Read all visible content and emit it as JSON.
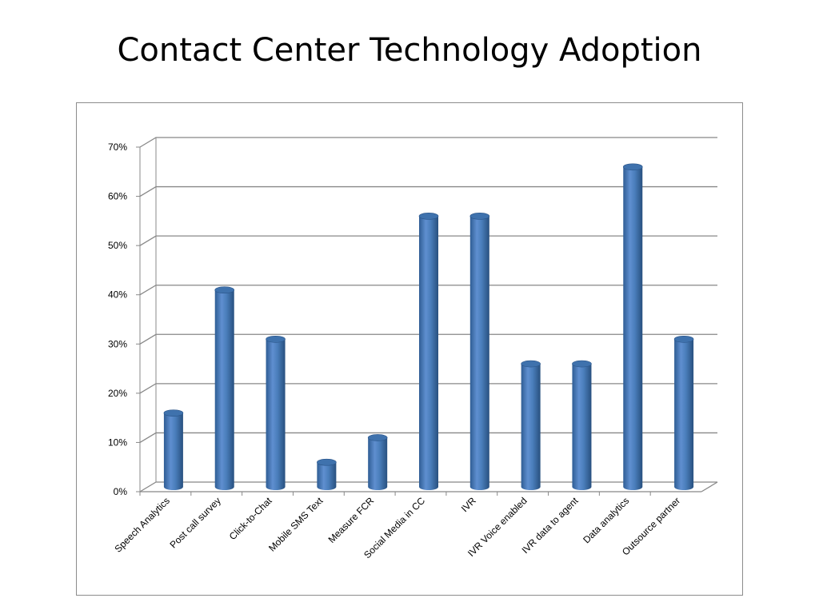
{
  "slide": {
    "title": "Contact Center Technology Adoption"
  },
  "chart_data": {
    "type": "bar",
    "style": "3d-cylinder",
    "bar_color": "#4a7ebb",
    "grid": true,
    "legend": "none",
    "ylim": [
      0,
      0.7
    ],
    "yticks": [
      {
        "value": 0.0,
        "label": "0%"
      },
      {
        "value": 0.1,
        "label": "10%"
      },
      {
        "value": 0.2,
        "label": "20%"
      },
      {
        "value": 0.3,
        "label": "30%"
      },
      {
        "value": 0.4,
        "label": "40%"
      },
      {
        "value": 0.5,
        "label": "50%"
      },
      {
        "value": 0.6,
        "label": "60%"
      },
      {
        "value": 0.7,
        "label": "70%"
      }
    ],
    "categories": [
      "Speech Analytics",
      "Post call survey",
      "Click-to-Chat",
      "Mobile SMS Text",
      "Measure FCR",
      "Social Media in CC",
      "IVR",
      "IVR Voice enabled",
      "IVR data to agent",
      "Data analytics",
      "Outsource partner"
    ],
    "values": [
      0.15,
      0.4,
      0.3,
      0.05,
      0.1,
      0.55,
      0.55,
      0.25,
      0.25,
      0.65,
      0.3
    ]
  }
}
